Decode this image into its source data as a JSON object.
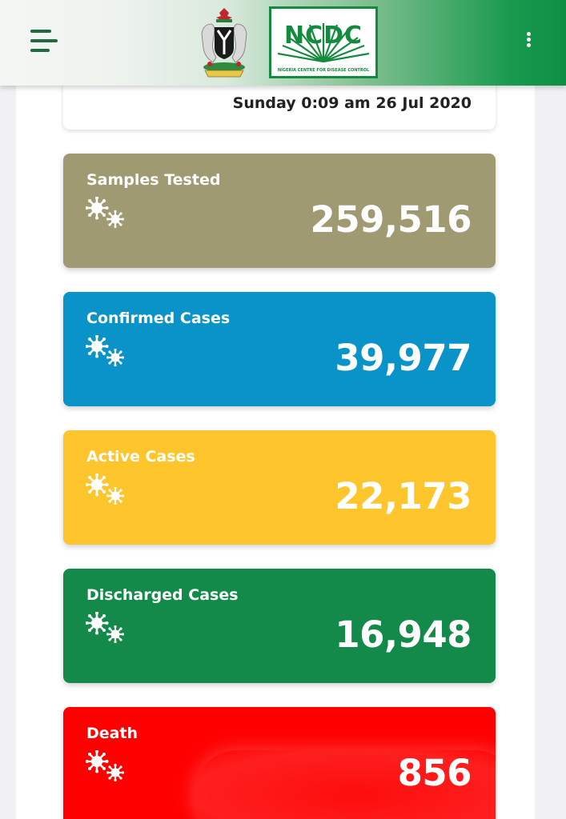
{
  "header": {
    "logo_text": "NCDC",
    "logo_subtitle": "NIGERIA CENTRE FOR DISEASE CONTROL",
    "menu_icon": "hamburger-menu-icon",
    "overflow_icon": "vertical-dots-icon",
    "colors": {
      "start": "#f4f6f4",
      "end": "#0e8e44",
      "logo_green": "#148a3f"
    }
  },
  "updated": {
    "datetime": "Sunday 0:09 am 26 Jul 2020"
  },
  "stats": [
    {
      "label": "Samples Tested",
      "value": "259,516",
      "color": "#a09a73",
      "icon": "virus-icon"
    },
    {
      "label": "Confirmed Cases",
      "value": "39,977",
      "color": "#0a93c9",
      "icon": "virus-icon"
    },
    {
      "label": "Active Cases",
      "value": "22,173",
      "color": "#fec52c",
      "icon": "virus-icon"
    },
    {
      "label": "Discharged Cases",
      "value": "16,948",
      "color": "#138a49",
      "icon": "virus-icon"
    },
    {
      "label": "Death",
      "value": "856",
      "color": "#fe0000",
      "icon": "virus-icon"
    }
  ]
}
